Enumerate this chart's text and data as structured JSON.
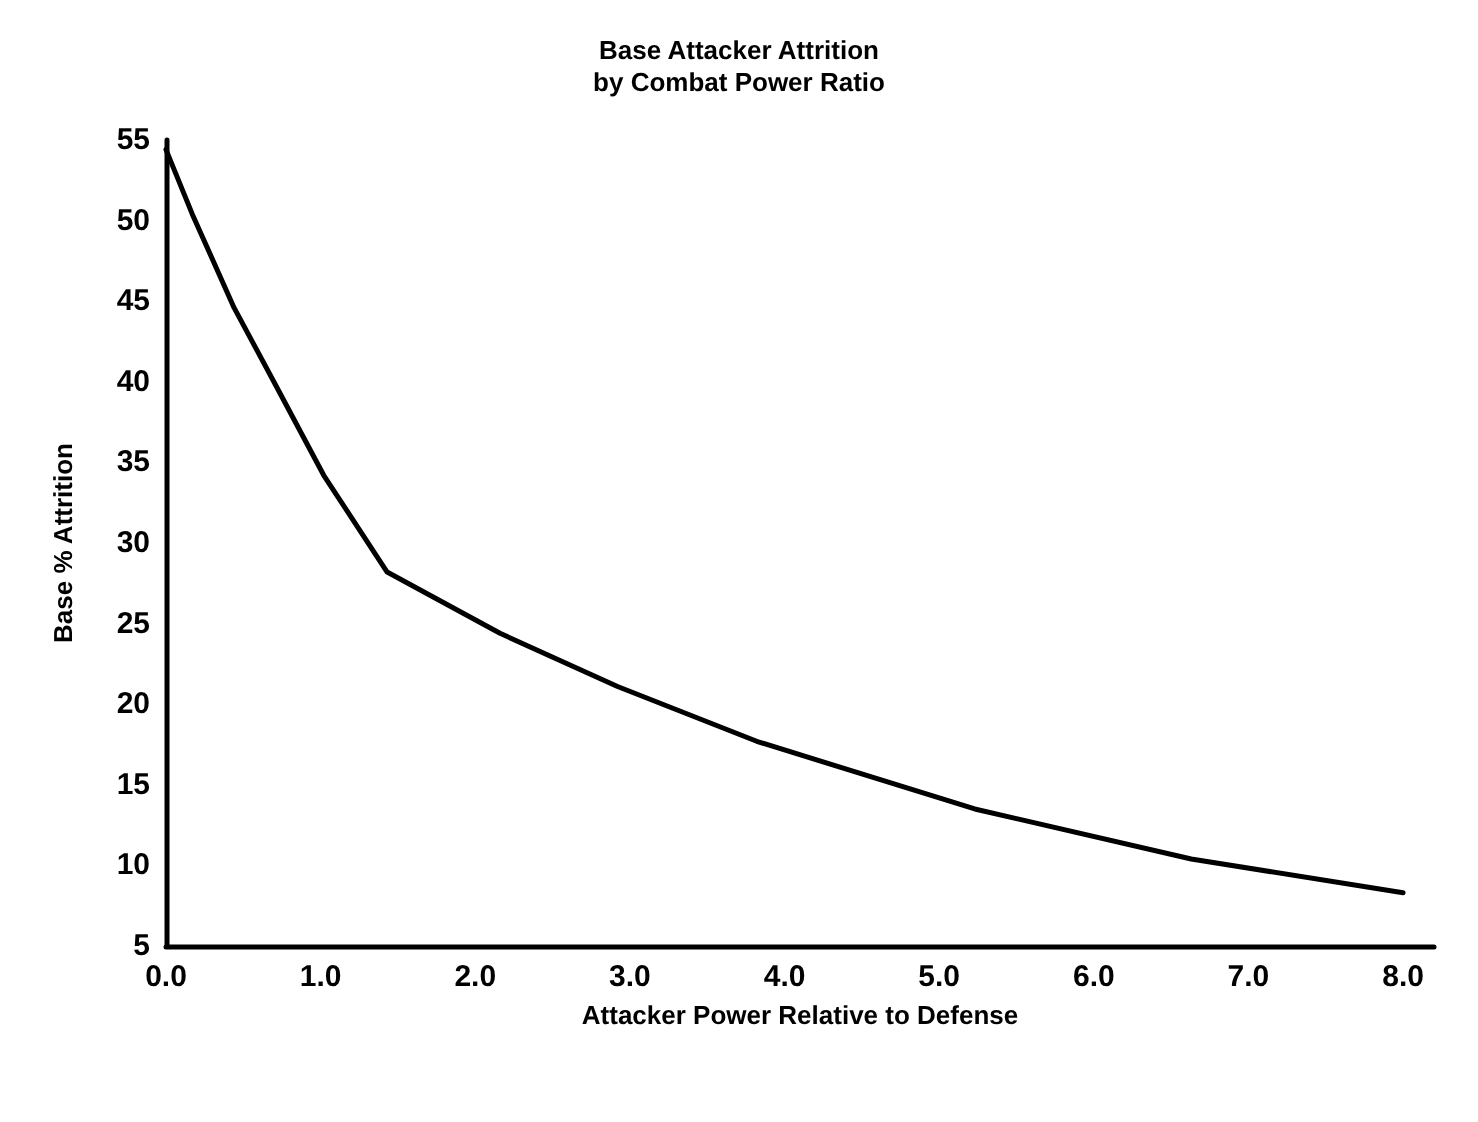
{
  "chart_data": {
    "type": "line",
    "title": "Base Attacker Attrition\nby Combat Power Ratio",
    "xlabel": "Attacker Power Relative to Defense",
    "ylabel": "Base % Attrition",
    "x": [
      0,
      0.17,
      0.44,
      0.72,
      1.02,
      1.43,
      2.16,
      2.92,
      3.82,
      5.23,
      6.63,
      8.0
    ],
    "series": [
      {
        "color": "#000000",
        "values": [
          54.4,
          50.4,
          44.6,
          39.6,
          34.2,
          28.2,
          24.4,
          21.1,
          17.7,
          13.5,
          10.4,
          8.3
        ]
      }
    ],
    "xlim": [
      0,
      8.2
    ],
    "xticks": [
      {
        "value": 0,
        "label": "0.0"
      },
      {
        "value": 1,
        "label": "1.0"
      },
      {
        "value": 2,
        "label": "2.0"
      },
      {
        "value": 3,
        "label": "3.0"
      },
      {
        "value": 4,
        "label": "4.0"
      },
      {
        "value": 5,
        "label": "5.0"
      },
      {
        "value": 6,
        "label": "6.0"
      },
      {
        "value": 7,
        "label": "7.0"
      },
      {
        "value": 8,
        "label": "8.0"
      }
    ],
    "ylim": [
      5,
      55
    ],
    "yticks": [
      5,
      10,
      15,
      20,
      25,
      30,
      35,
      40,
      45,
      50,
      55
    ],
    "grid": false,
    "marker": "none",
    "line_style": "solid"
  }
}
